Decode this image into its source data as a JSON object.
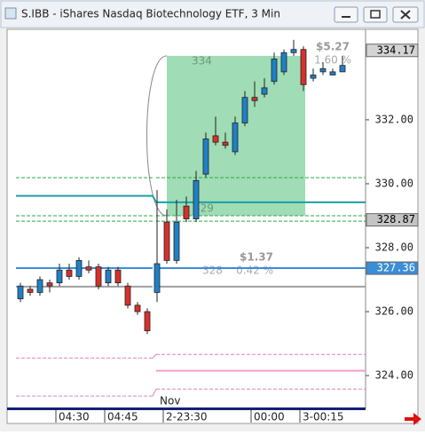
{
  "chart_data": {
    "type": "candlestick",
    "title": "S.IBB - iShares Nasdaq Biotechnology ETF, 3 Min",
    "categories": [
      null,
      null,
      null,
      null,
      "04:30",
      null,
      null,
      null,
      null,
      "04:45",
      null,
      null,
      null,
      null,
      null,
      "2-23:30",
      null,
      null,
      null,
      null,
      null,
      null,
      null,
      null,
      "00:00",
      null,
      null,
      null,
      null,
      "3-00:15",
      null,
      null,
      null,
      null
    ],
    "open": [
      326.4,
      326.7,
      326.6,
      326.9,
      326.9,
      327.3,
      327.1,
      327.4,
      327.4,
      326.9,
      327.3,
      326.8,
      326.2,
      326.0,
      326.6,
      328.8,
      327.6,
      329.3,
      328.9,
      330.3,
      331.5,
      331.3,
      331.0,
      331.9,
      332.7,
      332.8,
      333.2,
      333.5,
      334.1,
      334.2,
      333.3,
      333.5,
      333.4,
      333.5
    ],
    "high": [
      326.9,
      326.8,
      327.1,
      327.0,
      327.5,
      327.5,
      327.7,
      327.6,
      327.5,
      327.4,
      327.4,
      326.9,
      326.3,
      326.1,
      329.8,
      329.2,
      329.5,
      329.6,
      330.4,
      331.6,
      332.1,
      331.6,
      332.1,
      332.9,
      333.2,
      333.3,
      334.1,
      334.2,
      334.5,
      334.3,
      333.6,
      333.8,
      333.6,
      334.0
    ],
    "low": [
      326.3,
      326.5,
      326.5,
      326.6,
      326.8,
      327.0,
      327.0,
      327.2,
      326.7,
      326.8,
      326.8,
      326.1,
      325.9,
      325.3,
      326.3,
      327.5,
      327.5,
      328.8,
      328.8,
      330.2,
      331.2,
      331.1,
      330.9,
      331.8,
      332.4,
      332.7,
      333.1,
      333.4,
      334.0,
      332.9,
      333.2,
      333.4,
      333.4,
      333.5
    ],
    "close": [
      326.8,
      326.6,
      327.0,
      326.8,
      327.3,
      327.1,
      327.6,
      327.3,
      326.8,
      327.3,
      326.9,
      326.2,
      326.0,
      325.4,
      327.5,
      327.6,
      328.8,
      328.9,
      330.1,
      331.4,
      331.3,
      331.2,
      331.9,
      332.7,
      332.6,
      333.0,
      333.9,
      334.1,
      334.2,
      333.1,
      333.4,
      333.6,
      333.5,
      333.7
    ],
    "up_color": "#1f80c6",
    "down_color": "#d8302c",
    "ylim": [
      323.03,
      334.83
    ],
    "yticks": [
      {
        "value": 324,
        "label": "324.00"
      },
      {
        "value": 326,
        "label": "326.00"
      },
      {
        "value": 328,
        "label": "328.00"
      },
      {
        "value": 330,
        "label": "330.00"
      },
      {
        "value": 332,
        "label": "332.00"
      }
    ],
    "date_label": "Nov",
    "price_markers": [
      {
        "value": 334.17,
        "color": "#d4d4d4",
        "text_color": "#000000"
      },
      {
        "value": 328.87,
        "color": "#c4c4c4",
        "text_color": "#000000"
      },
      {
        "value": 327.36,
        "color": "#3a8ed8",
        "text_color": "#ffffff"
      }
    ],
    "levels": [
      {
        "color": "#2fa84a",
        "dashed": true,
        "values": [
          330.19,
          330.19
        ]
      },
      {
        "color": "#2fa84a",
        "dashed": true,
        "values": [
          329.0,
          329.0
        ]
      },
      {
        "color": "#2fa84a",
        "dashed": true,
        "values": [
          328.83,
          328.83
        ]
      },
      {
        "color": "#1aa0a8",
        "dashed": false,
        "values": [
          329.62,
          329.42
        ]
      },
      {
        "color": "#3a8ed8",
        "dashed": false,
        "values": [
          327.36,
          327.36
        ]
      },
      {
        "color": "#a0a0a0",
        "dashed": false,
        "values": [
          326.78,
          326.78
        ]
      },
      {
        "color": "#e080c0",
        "dashed": true,
        "values": [
          324.55,
          324.66
        ]
      },
      {
        "color": "#f0a0c8",
        "dashed": false,
        "values": [
          null,
          324.15
        ]
      },
      {
        "color": "#e080c0",
        "dashed": true,
        "values": [
          323.36,
          323.58
        ]
      }
    ],
    "measures": [
      {
        "high": 334,
        "low": 329,
        "change": "$5.27",
        "percent": "1.60 %",
        "color": "#8fd6a8"
      },
      {
        "low": 328,
        "change": "$1.37",
        "percent": "0.42 %"
      }
    ]
  }
}
